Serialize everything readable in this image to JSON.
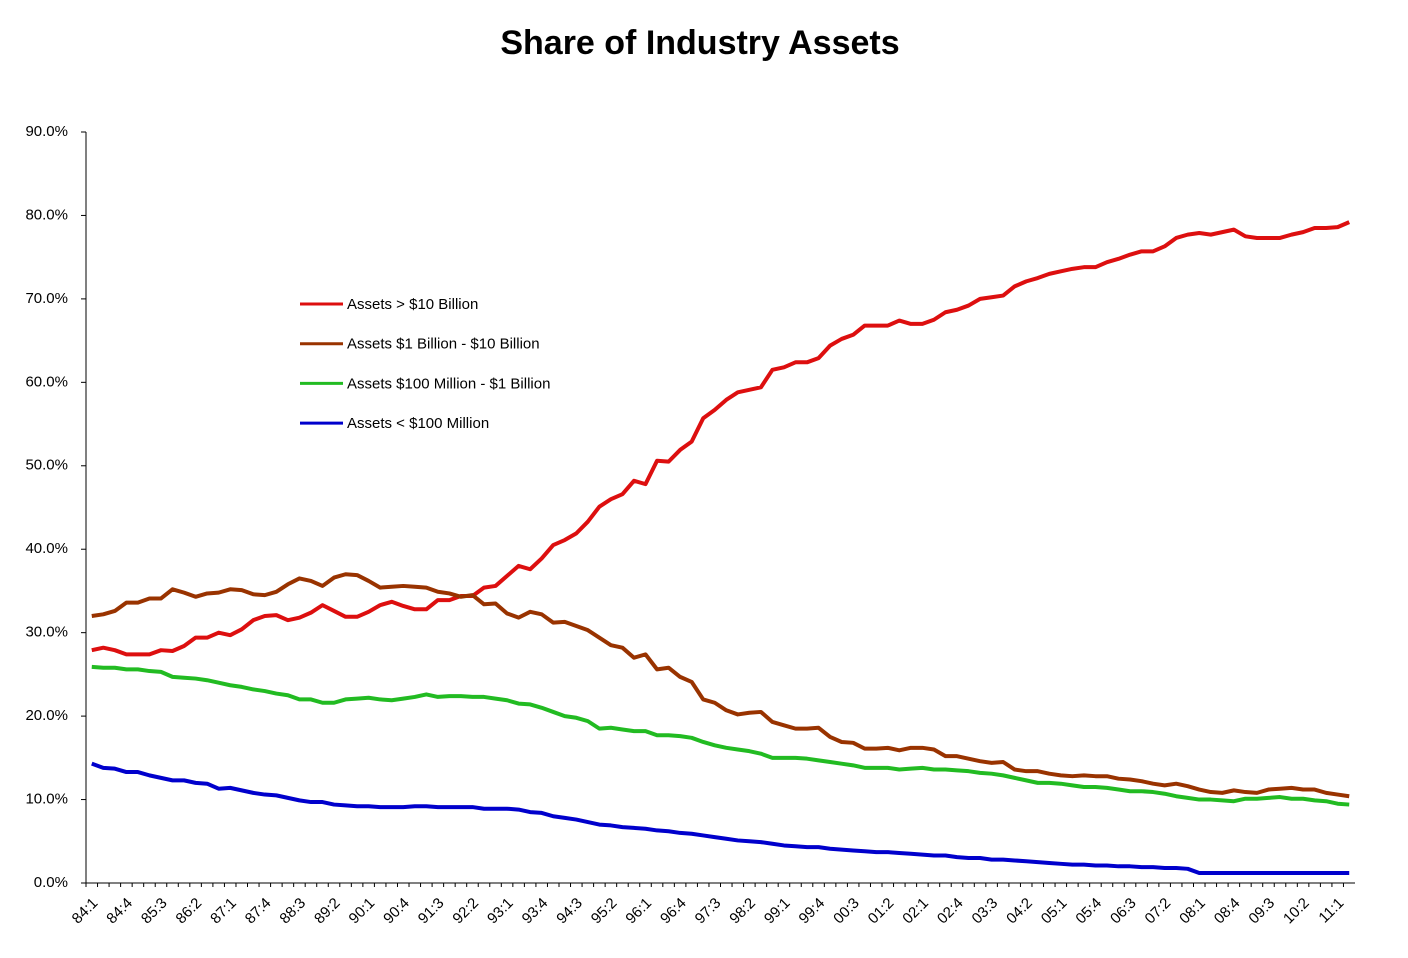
{
  "chart_data": {
    "type": "line",
    "title": "Share of Industry Assets",
    "categories": [
      "84:1",
      null,
      null,
      "84:4",
      null,
      null,
      "85:3",
      null,
      null,
      "86:2",
      null,
      null,
      "87:1",
      null,
      null,
      "87:4",
      null,
      null,
      "88:3",
      null,
      null,
      "89:2",
      null,
      null,
      "90:1",
      null,
      null,
      "90:4",
      null,
      null,
      "91:3",
      null,
      null,
      "92:2",
      null,
      null,
      "93:1",
      null,
      null,
      "93:4",
      null,
      null,
      "94:3",
      null,
      null,
      "95:2",
      null,
      null,
      "96:1",
      null,
      null,
      "96:4",
      null,
      null,
      "97:3",
      null,
      null,
      "98:2",
      null,
      null,
      "99:1",
      null,
      null,
      "99:4",
      null,
      null,
      "00:3",
      null,
      null,
      "01:2",
      null,
      null,
      "02:1",
      null,
      null,
      "02:4",
      null,
      null,
      "03:3",
      null,
      null,
      "04:2",
      null,
      null,
      "05:1",
      null,
      null,
      "05:4",
      null,
      null,
      "06:3",
      null,
      null,
      "07:2",
      null,
      null,
      "08:1",
      null,
      null,
      "08:4",
      null,
      null,
      "09:3",
      null,
      null,
      "10:2",
      null,
      null,
      "11:1",
      null
    ],
    "series": [
      {
        "name": "Assets > $10 Billion",
        "color": "#dd0f0f",
        "values": [
          27.9,
          28.2,
          27.9,
          27.4,
          27.4,
          27.4,
          27.9,
          27.8,
          28.4,
          29.4,
          29.4,
          30.0,
          29.7,
          30.4,
          31.5,
          32.0,
          32.1,
          31.5,
          31.8,
          32.4,
          33.3,
          32.6,
          31.9,
          31.9,
          32.5,
          33.3,
          33.7,
          33.2,
          32.8,
          32.8,
          33.9,
          33.9,
          34.4,
          34.4,
          35.4,
          35.6,
          36.8,
          38.0,
          37.6,
          38.9,
          40.5,
          41.1,
          41.9,
          43.3,
          45.1,
          46.0,
          46.6,
          48.2,
          47.8,
          50.6,
          50.5,
          51.9,
          52.9,
          55.7,
          56.7,
          57.9,
          58.8,
          59.1,
          59.4,
          61.5,
          61.8,
          62.4,
          62.4,
          62.9,
          64.4,
          65.2,
          65.7,
          66.8,
          66.8,
          66.8,
          67.4,
          67.0,
          67.0,
          67.5,
          68.4,
          68.7,
          69.2,
          70.0,
          70.2,
          70.4,
          71.5,
          72.1,
          72.5,
          73.0,
          73.3,
          73.6,
          73.8,
          73.8,
          74.4,
          74.8,
          75.3,
          75.7,
          75.7,
          76.3,
          77.3,
          77.7,
          77.9,
          77.7,
          78.0,
          78.3,
          77.5,
          77.3,
          77.3,
          77.3,
          77.7,
          78.0,
          78.5,
          78.5,
          78.6,
          79.2
        ]
      },
      {
        "name": "Assets $1 Billion - $10 Billion",
        "color": "#993300",
        "values": [
          32.0,
          32.2,
          32.6,
          33.6,
          33.6,
          34.1,
          34.1,
          35.2,
          34.8,
          34.3,
          34.7,
          34.8,
          35.2,
          35.1,
          34.6,
          34.5,
          34.9,
          35.8,
          36.5,
          36.2,
          35.6,
          36.6,
          37.0,
          36.9,
          36.2,
          35.4,
          35.5,
          35.6,
          35.5,
          35.4,
          34.9,
          34.7,
          34.3,
          34.5,
          33.4,
          33.5,
          32.3,
          31.8,
          32.5,
          32.2,
          31.2,
          31.3,
          30.8,
          30.3,
          29.4,
          28.5,
          28.2,
          27.0,
          27.4,
          25.6,
          25.8,
          24.7,
          24.1,
          22.0,
          21.6,
          20.7,
          20.2,
          20.4,
          20.5,
          19.3,
          18.9,
          18.5,
          18.5,
          18.6,
          17.5,
          16.9,
          16.8,
          16.1,
          16.1,
          16.2,
          15.9,
          16.2,
          16.2,
          16.0,
          15.2,
          15.2,
          14.9,
          14.6,
          14.4,
          14.5,
          13.6,
          13.4,
          13.4,
          13.1,
          12.9,
          12.8,
          12.9,
          12.8,
          12.8,
          12.5,
          12.4,
          12.2,
          11.9,
          11.7,
          11.9,
          11.6,
          11.2,
          10.9,
          10.8,
          11.1,
          10.9,
          10.8,
          11.2,
          11.3,
          11.4,
          11.2,
          11.2,
          10.8,
          10.6,
          10.4
        ]
      },
      {
        "name": "Assets $100 Million - $1 Billion",
        "color": "#22bb22",
        "values": [
          25.9,
          25.8,
          25.8,
          25.6,
          25.6,
          25.4,
          25.3,
          24.7,
          24.6,
          24.5,
          24.3,
          24.0,
          23.7,
          23.5,
          23.2,
          23.0,
          22.7,
          22.5,
          22.0,
          22.0,
          21.6,
          21.6,
          22.0,
          22.1,
          22.2,
          22.0,
          21.9,
          22.1,
          22.3,
          22.6,
          22.3,
          22.4,
          22.4,
          22.3,
          22.3,
          22.1,
          21.9,
          21.5,
          21.4,
          21.0,
          20.5,
          20.0,
          19.8,
          19.4,
          18.5,
          18.6,
          18.4,
          18.2,
          18.2,
          17.7,
          17.7,
          17.6,
          17.4,
          16.9,
          16.5,
          16.2,
          16.0,
          15.8,
          15.5,
          15.0,
          15.0,
          15.0,
          14.9,
          14.7,
          14.5,
          14.3,
          14.1,
          13.8,
          13.8,
          13.8,
          13.6,
          13.7,
          13.8,
          13.6,
          13.6,
          13.5,
          13.4,
          13.2,
          13.1,
          12.9,
          12.6,
          12.3,
          12.0,
          12.0,
          11.9,
          11.7,
          11.5,
          11.5,
          11.4,
          11.2,
          11.0,
          11.0,
          10.9,
          10.7,
          10.4,
          10.2,
          10.0,
          10.0,
          9.9,
          9.8,
          10.1,
          10.1,
          10.2,
          10.3,
          10.1,
          10.1,
          9.9,
          9.8,
          9.5,
          9.4
        ]
      },
      {
        "name": "Assets < $100 Million",
        "color": "#0000cc",
        "values": [
          14.3,
          13.8,
          13.7,
          13.3,
          13.3,
          12.9,
          12.6,
          12.3,
          12.3,
          12.0,
          11.9,
          11.3,
          11.4,
          11.1,
          10.8,
          10.6,
          10.5,
          10.2,
          9.9,
          9.7,
          9.7,
          9.4,
          9.3,
          9.2,
          9.2,
          9.1,
          9.1,
          9.1,
          9.2,
          9.2,
          9.1,
          9.1,
          9.1,
          9.1,
          8.9,
          8.9,
          8.9,
          8.8,
          8.5,
          8.4,
          8.0,
          7.8,
          7.6,
          7.3,
          7.0,
          6.9,
          6.7,
          6.6,
          6.5,
          6.3,
          6.2,
          6.0,
          5.9,
          5.7,
          5.5,
          5.3,
          5.1,
          5.0,
          4.9,
          4.7,
          4.5,
          4.4,
          4.3,
          4.3,
          4.1,
          4.0,
          3.9,
          3.8,
          3.7,
          3.7,
          3.6,
          3.5,
          3.4,
          3.3,
          3.3,
          3.1,
          3.0,
          3.0,
          2.8,
          2.8,
          2.7,
          2.6,
          2.5,
          2.4,
          2.3,
          2.2,
          2.2,
          2.1,
          2.1,
          2.0,
          2.0,
          1.9,
          1.9,
          1.8,
          1.8,
          1.7,
          1.2,
          1.2,
          1.2,
          1.2,
          1.2,
          1.2,
          1.2,
          1.2,
          1.2,
          1.2,
          1.2,
          1.2,
          1.2,
          1.2
        ]
      }
    ],
    "ylim": [
      0,
      90
    ],
    "yticks": [
      {
        "value": 0,
        "label": "0.0%"
      },
      {
        "value": 10,
        "label": "10.0%"
      },
      {
        "value": 20,
        "label": "20.0%"
      },
      {
        "value": 30,
        "label": "30.0%"
      },
      {
        "value": 40,
        "label": "40.0%"
      },
      {
        "value": 50,
        "label": "50.0%"
      },
      {
        "value": 60,
        "label": "60.0%"
      },
      {
        "value": 70,
        "label": "70.0%"
      },
      {
        "value": 80,
        "label": "80.0%"
      },
      {
        "value": 90,
        "label": "90.0%"
      }
    ],
    "grid": false,
    "legend": "upper left"
  }
}
